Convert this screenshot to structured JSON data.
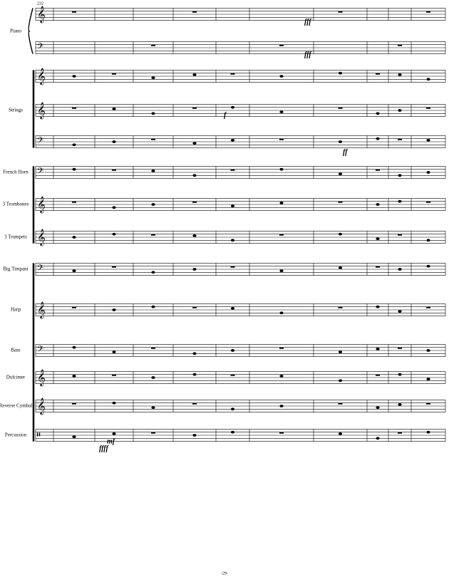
{
  "header": {
    "measure_number": "232"
  },
  "instruments": [
    "Piano",
    "Strings",
    "French Horn",
    "3 Trombones",
    "3 Trumpets",
    "Big Timpani",
    "Harp",
    "Bass",
    "Dulcimer",
    "Reverse Cymbal",
    "Percussion"
  ],
  "dynamics": [
    "fff",
    "fff",
    "f",
    "ff",
    "ffff",
    "mf"
  ],
  "footer": {
    "page_number": "-29-"
  }
}
